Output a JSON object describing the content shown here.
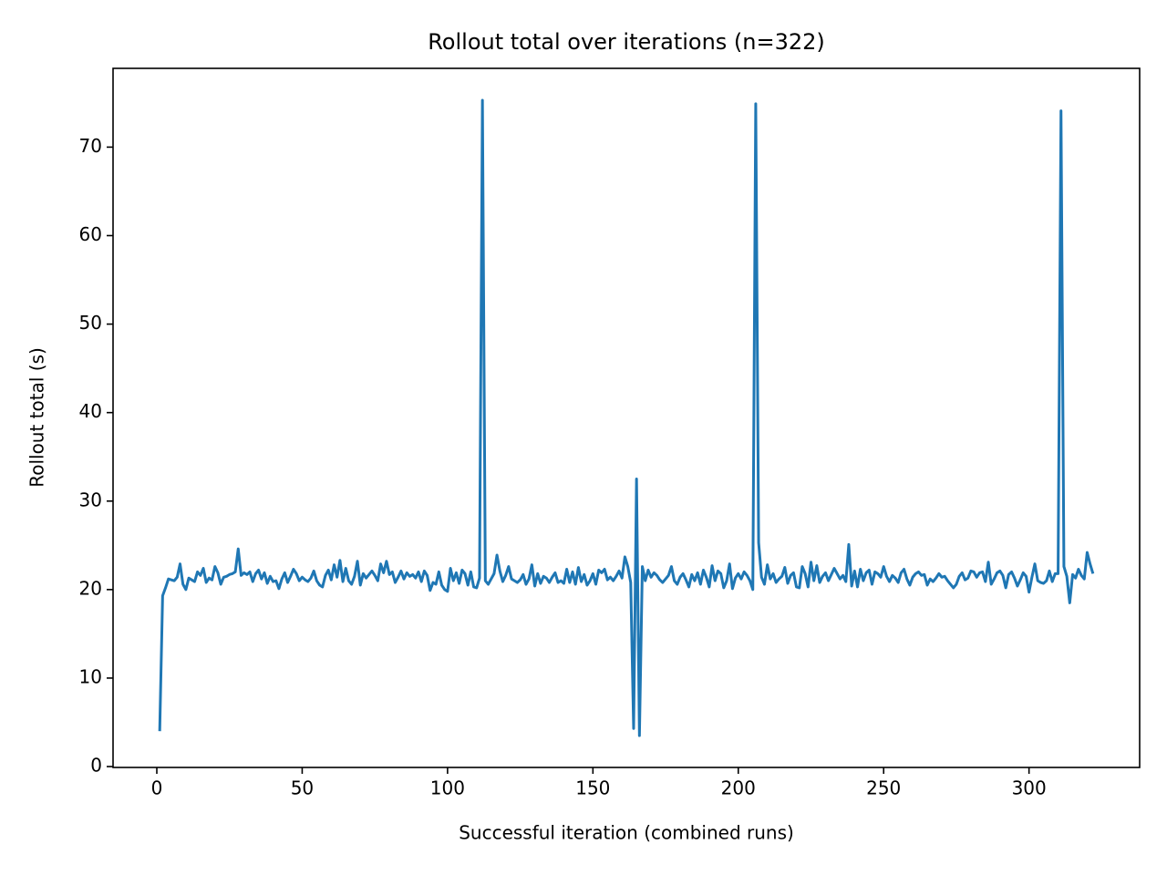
{
  "chart_data": {
    "type": "line",
    "title": "Rollout total over iterations (n=322)",
    "x_label": "Successful iteration (combined runs)",
    "y_label": "Rollout total (s)",
    "color": "#1f77b4",
    "grid": false,
    "xlim": [
      -15.05,
      338.05
    ],
    "ylim": [
      -0.1,
      78.9
    ],
    "xticks": [
      0,
      50,
      100,
      150,
      200,
      250,
      300
    ],
    "yticks": [
      0,
      10,
      20,
      30,
      40,
      50,
      60,
      70
    ],
    "x": [
      1,
      2,
      3,
      4,
      5,
      6,
      7,
      8,
      9,
      10,
      11,
      12,
      13,
      14,
      15,
      16,
      17,
      18,
      19,
      20,
      21,
      22,
      23,
      24,
      25,
      26,
      27,
      28,
      29,
      30,
      31,
      32,
      33,
      34,
      35,
      36,
      37,
      38,
      39,
      40,
      41,
      42,
      43,
      44,
      45,
      46,
      47,
      48,
      49,
      50,
      51,
      52,
      53,
      54,
      55,
      56,
      57,
      58,
      59,
      60,
      61,
      62,
      63,
      64,
      65,
      66,
      67,
      68,
      69,
      70,
      71,
      72,
      73,
      74,
      75,
      76,
      77,
      78,
      79,
      80,
      81,
      82,
      83,
      84,
      85,
      86,
      87,
      88,
      89,
      90,
      91,
      92,
      93,
      94,
      95,
      96,
      97,
      98,
      99,
      100,
      101,
      102,
      103,
      104,
      105,
      106,
      107,
      108,
      109,
      110,
      111,
      112,
      113,
      114,
      115,
      116,
      117,
      118,
      119,
      120,
      121,
      122,
      123,
      124,
      125,
      126,
      127,
      128,
      129,
      130,
      131,
      132,
      133,
      134,
      135,
      136,
      137,
      138,
      139,
      140,
      141,
      142,
      143,
      144,
      145,
      146,
      147,
      148,
      149,
      150,
      151,
      152,
      153,
      154,
      155,
      156,
      157,
      158,
      159,
      160,
      161,
      162,
      163,
      164,
      165,
      166,
      167,
      168,
      169,
      170,
      171,
      172,
      173,
      174,
      175,
      176,
      177,
      178,
      179,
      180,
      181,
      182,
      183,
      184,
      185,
      186,
      187,
      188,
      189,
      190,
      191,
      192,
      193,
      194,
      195,
      196,
      197,
      198,
      199,
      200,
      201,
      202,
      203,
      204,
      205,
      206,
      207,
      208,
      209,
      210,
      211,
      212,
      213,
      214,
      215,
      216,
      217,
      218,
      219,
      220,
      221,
      222,
      223,
      224,
      225,
      226,
      227,
      228,
      229,
      230,
      231,
      232,
      233,
      234,
      235,
      236,
      237,
      238,
      239,
      240,
      241,
      242,
      243,
      244,
      245,
      246,
      247,
      248,
      249,
      250,
      251,
      252,
      253,
      254,
      255,
      256,
      257,
      258,
      259,
      260,
      261,
      262,
      263,
      264,
      265,
      266,
      267,
      268,
      269,
      270,
      271,
      272,
      273,
      274,
      275,
      276,
      277,
      278,
      279,
      280,
      281,
      282,
      283,
      284,
      285,
      286,
      287,
      288,
      289,
      290,
      291,
      292,
      293,
      294,
      295,
      296,
      297,
      298,
      299,
      300,
      301,
      302,
      303,
      304,
      305,
      306,
      307,
      308,
      309,
      310,
      311,
      312,
      313,
      314,
      315,
      316,
      317,
      318,
      319,
      320,
      321,
      322
    ],
    "values": [
      4.0,
      19.3,
      20.2,
      21.2,
      21.1,
      21.0,
      21.4,
      22.9,
      20.6,
      20.0,
      21.3,
      21.1,
      20.9,
      22.0,
      21.6,
      22.4,
      20.8,
      21.3,
      21.1,
      22.6,
      21.9,
      20.6,
      21.4,
      21.5,
      21.7,
      21.8,
      22.0,
      24.6,
      21.6,
      21.9,
      21.7,
      22.0,
      20.9,
      21.8,
      22.2,
      21.2,
      21.9,
      20.7,
      21.5,
      20.9,
      21.0,
      20.1,
      21.2,
      21.9,
      20.8,
      21.5,
      22.3,
      21.8,
      21.0,
      21.4,
      21.1,
      20.9,
      21.3,
      22.1,
      21.0,
      20.5,
      20.3,
      21.6,
      22.2,
      21.1,
      22.8,
      21.4,
      23.3,
      20.9,
      22.4,
      21.0,
      20.6,
      21.5,
      23.2,
      20.5,
      21.8,
      21.3,
      21.7,
      22.1,
      21.6,
      21.0,
      22.9,
      21.9,
      23.2,
      21.7,
      22.0,
      20.8,
      21.4,
      22.1,
      21.2,
      21.9,
      21.5,
      21.7,
      21.3,
      22.0,
      20.9,
      22.1,
      21.6,
      19.9,
      20.8,
      20.6,
      22.0,
      20.5,
      20.0,
      19.8,
      22.4,
      21.0,
      21.9,
      20.7,
      22.2,
      21.8,
      20.5,
      22.0,
      20.3,
      20.2,
      21.3,
      75.3,
      21.0,
      20.6,
      21.2,
      21.8,
      23.9,
      22.1,
      20.9,
      21.6,
      22.6,
      21.2,
      21.0,
      20.8,
      21.1,
      21.7,
      20.6,
      21.2,
      22.8,
      20.4,
      21.8,
      20.7,
      21.5,
      21.3,
      20.8,
      21.4,
      21.9,
      20.8,
      21.0,
      20.7,
      22.3,
      20.8,
      22.0,
      20.6,
      22.5,
      20.9,
      21.7,
      20.5,
      21.0,
      21.8,
      20.6,
      22.2,
      21.9,
      22.3,
      21.1,
      21.4,
      21.0,
      21.5,
      22.1,
      21.3,
      23.7,
      22.6,
      20.8,
      4.3,
      32.5,
      3.5,
      22.6,
      21.0,
      22.2,
      21.4,
      21.9,
      21.6,
      21.1,
      20.8,
      21.2,
      21.6,
      22.6,
      21.0,
      20.6,
      21.4,
      21.8,
      21.1,
      20.3,
      21.7,
      21.0,
      21.9,
      20.6,
      22.2,
      21.4,
      20.3,
      22.7,
      21.0,
      22.1,
      21.8,
      20.2,
      21.0,
      22.9,
      20.1,
      21.3,
      21.8,
      21.2,
      22.0,
      21.6,
      21.0,
      20.0,
      74.9,
      25.3,
      21.4,
      20.6,
      22.8,
      21.2,
      21.8,
      20.8,
      21.2,
      21.5,
      22.5,
      20.7,
      21.6,
      21.9,
      20.3,
      20.2,
      22.6,
      21.8,
      20.3,
      23.1,
      21.0,
      22.7,
      20.8,
      21.5,
      21.9,
      21.0,
      21.7,
      22.4,
      21.8,
      21.2,
      21.6,
      20.9,
      25.1,
      20.4,
      22.1,
      20.3,
      22.3,
      21.0,
      21.9,
      22.2,
      20.6,
      22.0,
      21.8,
      21.4,
      22.6,
      21.5,
      20.9,
      21.6,
      21.3,
      20.8,
      21.9,
      22.3,
      21.2,
      20.5,
      21.4,
      21.8,
      22.0,
      21.6,
      21.7,
      20.5,
      21.2,
      20.9,
      21.3,
      21.8,
      21.4,
      21.5,
      21.0,
      20.6,
      20.2,
      20.6,
      21.5,
      21.9,
      21.1,
      21.3,
      22.1,
      22.0,
      21.4,
      21.9,
      22.0,
      20.9,
      23.1,
      20.6,
      21.2,
      21.9,
      22.1,
      21.6,
      20.2,
      21.7,
      22.0,
      21.3,
      20.4,
      21.1,
      21.9,
      21.5,
      19.7,
      21.4,
      22.9,
      21.0,
      20.8,
      20.7,
      21.0,
      22.1,
      20.9,
      21.8,
      21.8,
      74.1,
      22.6,
      21.5,
      18.5,
      21.7,
      21.3,
      22.3,
      21.6,
      21.2,
      24.2,
      22.9,
      21.8
    ]
  }
}
